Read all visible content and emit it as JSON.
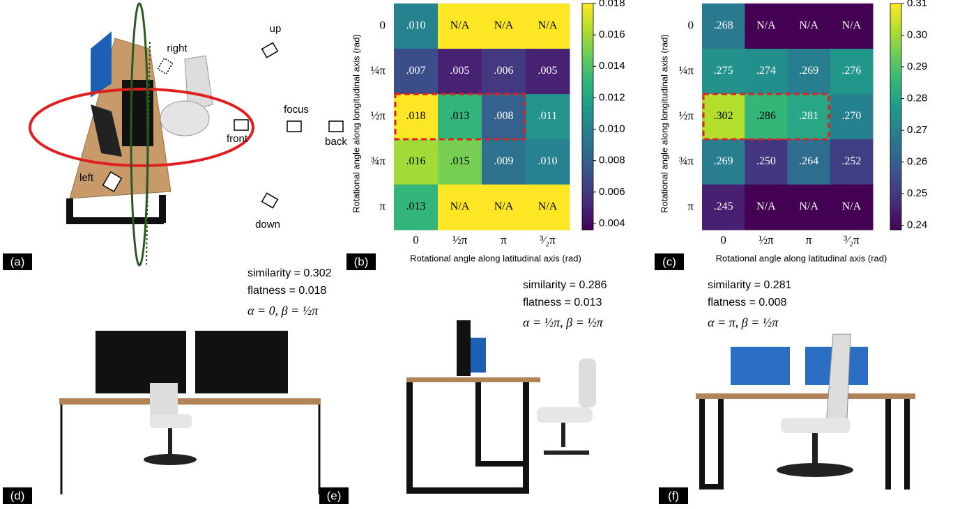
{
  "panel_a": {
    "label": "(a)",
    "cameras": [
      "up",
      "right",
      "focus",
      "front",
      "back",
      "left",
      "down"
    ]
  },
  "chart_data": [
    {
      "type": "heatmap",
      "label": "(b)",
      "x_label": "Rotational angle along latitudinal axis (rad)",
      "y_label": "Rotational angle along longitudinal axis (rad)",
      "x_categories": [
        "0",
        "½π",
        "π",
        "³⁄₂π"
      ],
      "y_categories": [
        "0",
        "¼π",
        "½π",
        "¾π",
        "π"
      ],
      "values": [
        [
          0.01,
          null,
          null,
          null
        ],
        [
          0.007,
          0.005,
          0.006,
          0.005
        ],
        [
          0.018,
          0.013,
          0.008,
          0.011
        ],
        [
          0.016,
          0.015,
          0.009,
          0.01
        ],
        [
          0.013,
          null,
          null,
          null
        ]
      ],
      "value_labels": [
        [
          ".010",
          "N/A",
          "N/A",
          "N/A"
        ],
        [
          ".007",
          ".005",
          ".006",
          ".005"
        ],
        [
          ".018",
          ".013",
          ".008",
          ".011"
        ],
        [
          ".016",
          ".015",
          ".009",
          ".010"
        ],
        [
          ".013",
          "N/A",
          "N/A",
          "N/A"
        ]
      ],
      "colormap": "viridis",
      "na_color": "#fde725",
      "clim": [
        0.0036,
        0.018
      ],
      "cticks": [
        0.004,
        0.006,
        0.008,
        {
          "value": 0.01,
          "label": "0.010"
        },
        0.012,
        0.014,
        0.016,
        0.018
      ]
    },
    {
      "type": "heatmap",
      "label": "(c)",
      "x_label": "Rotational angle along latitudinal axis (rad)",
      "y_label": "Rotational angle along longitudinal axis (rad)",
      "x_categories": [
        "0",
        "½π",
        "π",
        "³⁄₂π"
      ],
      "y_categories": [
        "0",
        "¼π",
        "½π",
        "¾π",
        "π"
      ],
      "values": [
        [
          0.268,
          null,
          null,
          null
        ],
        [
          0.275,
          0.274,
          0.269,
          0.276
        ],
        [
          0.302,
          0.286,
          0.281,
          0.27
        ],
        [
          0.269,
          0.25,
          0.264,
          0.252
        ],
        [
          0.245,
          null,
          null,
          null
        ]
      ],
      "value_labels": [
        [
          ".268",
          "N/A",
          "N/A",
          "N/A"
        ],
        [
          ".275",
          ".274",
          ".269",
          ".276"
        ],
        [
          ".302",
          ".286",
          ".281",
          ".270"
        ],
        [
          ".269",
          ".250",
          ".264",
          ".252"
        ],
        [
          ".245",
          "N/A",
          "N/A",
          "N/A"
        ]
      ],
      "colormap": "viridis",
      "na_color": "#440154",
      "clim": [
        0.2386,
        0.31
      ],
      "cticks": [
        0.24,
        0.25,
        0.26,
        0.27,
        0.28,
        0.29,
        {
          "value": 0.3,
          "label": "0.30"
        },
        0.31
      ]
    }
  ],
  "views": [
    {
      "label": "(d)",
      "similarity": "similarity = 0.302",
      "flatness": "flatness = 0.018",
      "angles": "α = 0, β = ½π"
    },
    {
      "label": "(e)",
      "similarity": "similarity = 0.286",
      "flatness": "flatness = 0.013",
      "angles": "α = ½π, β = ½π"
    },
    {
      "label": "(f)",
      "similarity": "similarity = 0.281",
      "flatness": "flatness = 0.008",
      "angles": "α = π, β = ½π"
    }
  ]
}
